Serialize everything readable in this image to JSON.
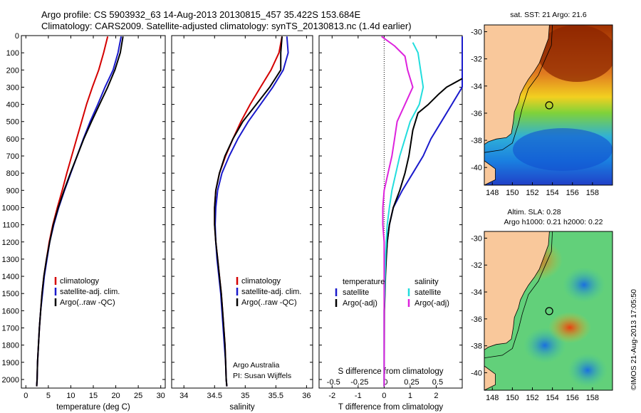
{
  "header": {
    "line1": "Argo profile: CS 5903932_63 14-Aug-2013 20130815_457 35.422S 153.684E",
    "line2": "Climatology: CARS2009. Satellite-adjusted climatology: synTS_20130813.nc (1.4d earlier)"
  },
  "colors": {
    "climatology": "#d40000",
    "satellite": "#1a1acc",
    "argo": "#000000",
    "sat_s": "#22dddd",
    "argo_s": "#dd22dd",
    "land": "#f9c89b"
  },
  "chart_data": [
    {
      "type": "line",
      "id": "temperature",
      "xlabel": "temperature (deg C)",
      "ylabel": "",
      "xlim": [
        -1,
        31
      ],
      "ylim": [
        2050,
        0
      ],
      "xticks": [
        0,
        5,
        10,
        15,
        20,
        25,
        30
      ],
      "yticks": [
        0,
        100,
        200,
        300,
        400,
        500,
        600,
        700,
        800,
        900,
        1000,
        1100,
        1200,
        1300,
        1400,
        1500,
        1600,
        1700,
        1800,
        1900,
        2000
      ],
      "legend": [
        "climatology",
        "satellite-adj. clim.",
        "Argo(..raw -QC)"
      ],
      "series": [
        {
          "name": "climatology",
          "color": "#d40000",
          "points": [
            [
              18.2,
              5
            ],
            [
              17.3,
              100
            ],
            [
              16.2,
              200
            ],
            [
              14.8,
              300
            ],
            [
              13.5,
              400
            ],
            [
              12.4,
              500
            ],
            [
              11.3,
              600
            ],
            [
              10.2,
              700
            ],
            [
              9.1,
              800
            ],
            [
              8.1,
              900
            ],
            [
              7.0,
              1000
            ],
            [
              6.0,
              1100
            ],
            [
              5.2,
              1200
            ],
            [
              4.6,
              1300
            ],
            [
              4.0,
              1400
            ],
            [
              3.6,
              1500
            ],
            [
              3.3,
              1600
            ],
            [
              3.0,
              1700
            ],
            [
              2.8,
              1800
            ],
            [
              2.6,
              1900
            ],
            [
              2.5,
              2000
            ],
            [
              2.4,
              2040
            ]
          ]
        },
        {
          "name": "satellite-adj. clim.",
          "color": "#1a1acc",
          "points": [
            [
              21.2,
              5
            ],
            [
              20.5,
              100
            ],
            [
              19.4,
              200
            ],
            [
              17.6,
              300
            ],
            [
              16.0,
              400
            ],
            [
              14.3,
              500
            ],
            [
              12.8,
              600
            ],
            [
              11.4,
              700
            ],
            [
              10.0,
              800
            ],
            [
              8.6,
              900
            ],
            [
              7.3,
              1000
            ],
            [
              6.2,
              1100
            ],
            [
              5.3,
              1200
            ],
            [
              4.7,
              1300
            ],
            [
              4.1,
              1400
            ],
            [
              3.7,
              1500
            ],
            [
              3.3,
              1600
            ],
            [
              3.0,
              1700
            ],
            [
              2.8,
              1800
            ],
            [
              2.6,
              1900
            ],
            [
              2.5,
              2000
            ],
            [
              2.4,
              2040
            ]
          ]
        },
        {
          "name": "Argo(..raw -QC)",
          "color": "#000000",
          "points": [
            [
              21.6,
              5
            ],
            [
              21.0,
              100
            ],
            [
              19.8,
              200
            ],
            [
              18.2,
              300
            ],
            [
              16.4,
              400
            ],
            [
              14.6,
              500
            ],
            [
              12.9,
              600
            ],
            [
              11.4,
              700
            ],
            [
              9.9,
              800
            ],
            [
              8.5,
              900
            ],
            [
              7.2,
              1000
            ],
            [
              6.1,
              1100
            ],
            [
              5.3,
              1200
            ],
            [
              4.6,
              1300
            ],
            [
              4.0,
              1400
            ],
            [
              3.6,
              1500
            ],
            [
              3.3,
              1600
            ],
            [
              3.0,
              1700
            ],
            [
              2.8,
              1800
            ],
            [
              2.6,
              1900
            ],
            [
              2.5,
              2000
            ],
            [
              2.4,
              2040
            ]
          ]
        }
      ]
    },
    {
      "type": "line",
      "id": "salinity",
      "xlabel": "salinity",
      "xlim": [
        33.8,
        36.1
      ],
      "ylim": [
        2050,
        0
      ],
      "xticks": [
        34,
        34.5,
        35,
        35.5,
        36
      ],
      "legend": [
        "climatology",
        "satellite-adj. clim.",
        "Argo(..raw -QC)"
      ],
      "annotation": [
        "Argo Australia",
        "PI: Susan Wijffels"
      ],
      "series": [
        {
          "name": "climatology",
          "color": "#d40000",
          "points": [
            [
              35.6,
              5
            ],
            [
              35.55,
              100
            ],
            [
              35.42,
              200
            ],
            [
              35.25,
              300
            ],
            [
              35.08,
              400
            ],
            [
              34.93,
              500
            ],
            [
              34.8,
              600
            ],
            [
              34.68,
              700
            ],
            [
              34.58,
              800
            ],
            [
              34.52,
              900
            ],
            [
              34.5,
              1000
            ],
            [
              34.5,
              1100
            ],
            [
              34.52,
              1200
            ],
            [
              34.55,
              1300
            ],
            [
              34.58,
              1400
            ],
            [
              34.61,
              1500
            ],
            [
              34.63,
              1600
            ],
            [
              34.65,
              1700
            ],
            [
              34.67,
              1800
            ],
            [
              34.68,
              1900
            ],
            [
              34.69,
              2000
            ],
            [
              34.7,
              2040
            ]
          ]
        },
        {
          "name": "satellite-adj. clim.",
          "color": "#1a1acc",
          "points": [
            [
              35.68,
              5
            ],
            [
              35.7,
              100
            ],
            [
              35.62,
              200
            ],
            [
              35.45,
              300
            ],
            [
              35.25,
              400
            ],
            [
              35.05,
              500
            ],
            [
              34.88,
              600
            ],
            [
              34.74,
              700
            ],
            [
              34.62,
              800
            ],
            [
              34.55,
              900
            ],
            [
              34.52,
              1000
            ],
            [
              34.51,
              1100
            ],
            [
              34.52,
              1200
            ],
            [
              34.54,
              1300
            ],
            [
              34.57,
              1400
            ],
            [
              34.6,
              1500
            ],
            [
              34.62,
              1600
            ],
            [
              34.64,
              1700
            ],
            [
              34.66,
              1800
            ],
            [
              34.68,
              1900
            ],
            [
              34.69,
              2000
            ],
            [
              34.7,
              2040
            ]
          ]
        },
        {
          "name": "Argo(..raw -QC)",
          "color": "#000000",
          "points": [
            [
              35.6,
              5
            ],
            [
              35.58,
              100
            ],
            [
              35.58,
              200
            ],
            [
              35.4,
              300
            ],
            [
              35.18,
              400
            ],
            [
              34.96,
              500
            ],
            [
              34.8,
              600
            ],
            [
              34.67,
              700
            ],
            [
              34.58,
              800
            ],
            [
              34.52,
              900
            ],
            [
              34.5,
              1000
            ],
            [
              34.5,
              1100
            ],
            [
              34.52,
              1200
            ],
            [
              34.55,
              1300
            ],
            [
              34.58,
              1400
            ],
            [
              34.61,
              1500
            ],
            [
              34.63,
              1600
            ],
            [
              34.65,
              1700
            ],
            [
              34.67,
              1800
            ],
            [
              34.68,
              1900
            ],
            [
              34.69,
              2000
            ],
            [
              34.7,
              2040
            ]
          ]
        }
      ]
    },
    {
      "type": "line",
      "id": "difference",
      "xlabel": "T difference from climatology",
      "xlabel_top": "S difference from climatology",
      "xlim": [
        -2.5,
        3.0
      ],
      "ylim": [
        2050,
        0
      ],
      "xticks": [
        -2,
        -1,
        0,
        1,
        2
      ],
      "xticks_s": [
        "-0.5",
        "-0.25",
        "0",
        "0.25",
        "0.5"
      ],
      "legend_left_title": "temperature",
      "legend_right_title": "salinity",
      "legend_left": [
        "satellite",
        "Argo(-adj)"
      ],
      "legend_right": [
        "satellite",
        "Argo(-adj)"
      ],
      "series": [
        {
          "name": "temperature satellite",
          "color": "#1a1acc",
          "points": [
            [
              3.0,
              5
            ],
            [
              3.0,
              300
            ],
            [
              2.6,
              400
            ],
            [
              2.2,
              500
            ],
            [
              1.8,
              600
            ],
            [
              1.5,
              700
            ],
            [
              1.1,
              800
            ],
            [
              0.7,
              900
            ],
            [
              0.35,
              1000
            ],
            [
              0.2,
              1100
            ],
            [
              0.12,
              1200
            ],
            [
              0.07,
              1300
            ],
            [
              0.04,
              1400
            ],
            [
              0.02,
              1500
            ],
            [
              0.0,
              1600
            ],
            [
              0.0,
              2040
            ]
          ]
        },
        {
          "name": "temperature Argo(-adj)",
          "color": "#000000",
          "points": [
            [
              3.0,
              250
            ],
            [
              2.4,
              300
            ],
            [
              2.1,
              340
            ],
            [
              1.7,
              400
            ],
            [
              1.3,
              450
            ],
            [
              1.1,
              550
            ],
            [
              0.95,
              700
            ],
            [
              0.8,
              800
            ],
            [
              0.6,
              900
            ],
            [
              0.35,
              1000
            ],
            [
              0.2,
              1100
            ],
            [
              0.12,
              1200
            ],
            [
              0.08,
              1300
            ],
            [
              0.05,
              1400
            ],
            [
              0.03,
              1500
            ],
            [
              0.01,
              1600
            ],
            [
              0.0,
              2040
            ]
          ]
        },
        {
          "name": "salinity satellite",
          "color": "#22dddd",
          "points": [
            [
              1.1,
              40
            ],
            [
              1.3,
              100
            ],
            [
              1.4,
              200
            ],
            [
              1.5,
              300
            ],
            [
              1.35,
              400
            ],
            [
              1.0,
              500
            ],
            [
              0.8,
              600
            ],
            [
              0.6,
              700
            ],
            [
              0.45,
              800
            ],
            [
              0.3,
              900
            ],
            [
              0.2,
              1000
            ],
            [
              0.12,
              1100
            ],
            [
              0.08,
              1200
            ],
            [
              0.05,
              1300
            ],
            [
              0.02,
              1500
            ],
            [
              0.0,
              1600
            ],
            [
              0.0,
              2040
            ]
          ]
        },
        {
          "name": "salinity Argo(-adj)",
          "color": "#dd22dd",
          "points": [
            [
              -0.1,
              5
            ],
            [
              0.4,
              60
            ],
            [
              0.8,
              120
            ],
            [
              0.9,
              200
            ],
            [
              1.1,
              300
            ],
            [
              0.8,
              400
            ],
            [
              0.5,
              500
            ],
            [
              0.4,
              600
            ],
            [
              0.3,
              700
            ],
            [
              0.15,
              800
            ],
            [
              0.0,
              900
            ],
            [
              -0.05,
              1000
            ],
            [
              -0.05,
              1100
            ],
            [
              0.0,
              1200
            ],
            [
              0.0,
              1300
            ],
            [
              0.0,
              1600
            ],
            [
              0.0,
              2040
            ]
          ]
        }
      ]
    }
  ],
  "maps": {
    "top": {
      "title": "sat. SST: 21 Argo: 21.6",
      "xticks": [
        "148",
        "150",
        "152",
        "154",
        "156",
        "158"
      ],
      "yticks": [
        "-30",
        "-32",
        "-34",
        "-36",
        "-38",
        "-40"
      ],
      "marker_lat": -35.42,
      "marker_lon": 153.68
    },
    "bottom": {
      "title_line1": "Altim. SLA: 0.28",
      "title_line2": "Argo h1000: 0.21 h2000: 0.22",
      "xticks": [
        "148",
        "150",
        "152",
        "154",
        "156",
        "158"
      ],
      "yticks": [
        "-30",
        "-32",
        "-34",
        "-36",
        "-38",
        "-40"
      ],
      "marker_lat": -35.42,
      "marker_lon": 153.68
    }
  },
  "footer": {
    "credit": "©IMOS 21-Aug-2013 17:05:50"
  }
}
